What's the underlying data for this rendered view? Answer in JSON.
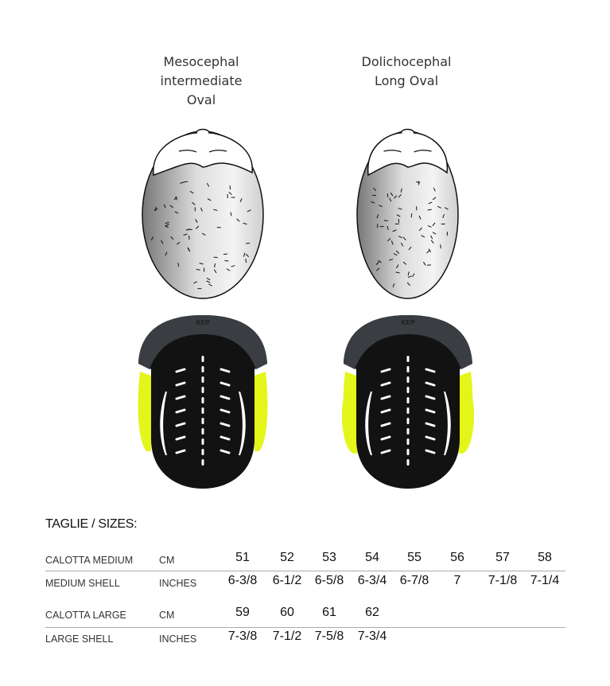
{
  "head_shapes": [
    {
      "lines": [
        "Mesocephal",
        "intermediate",
        "Oval"
      ]
    },
    {
      "lines": [
        "Dolichocephal",
        "Long  Oval"
      ]
    }
  ],
  "helmet_logo": "KEP",
  "colors": {
    "accent_yellow": "#e4f51a",
    "liner_black": "#121212",
    "shell_grey": "#3a3d42"
  },
  "sizes": {
    "title": "TAGLIE / SIZES:",
    "rows": [
      {
        "name": "CALOTTA MEDIUM",
        "unit": "CM",
        "values": [
          "51",
          "52",
          "53",
          "54",
          "55",
          "56",
          "57",
          "58"
        ]
      },
      {
        "name": "MEDIUM SHELL",
        "unit": "INCHES",
        "values": [
          "6-3/8",
          "6-1/2",
          "6-5/8",
          "6-3/4",
          "6-7/8",
          "7",
          "7-1/8",
          "7-1/4"
        ]
      },
      {
        "name": "CALOTTA LARGE",
        "unit": "CM",
        "values": [
          "59",
          "60",
          "61",
          "62"
        ]
      },
      {
        "name": "LARGE SHELL",
        "unit": "INCHES",
        "values": [
          "7-3/8",
          "7-1/2",
          "7-5/8",
          "7-3/4"
        ]
      }
    ]
  }
}
